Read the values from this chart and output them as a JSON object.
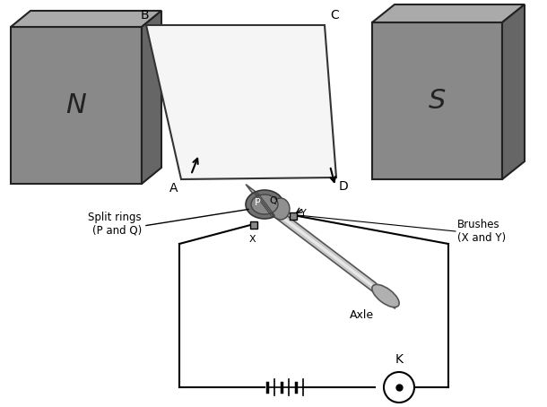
{
  "bg_color": "#ffffff",
  "magnet_color": "#808080",
  "magnet_face": "#898989",
  "magnet_top": "#aaaaaa",
  "magnet_side": "#666666",
  "magnet_edge": "#222222",
  "wire_color": "#000000",
  "text_color": "#000000",
  "N_label": "N",
  "S_label": "S",
  "ring_label": "Split rings\n(P and Q)",
  "brush_label": "Brushes\n(X and Y)",
  "K_label": "K",
  "axle_label": "Axle"
}
